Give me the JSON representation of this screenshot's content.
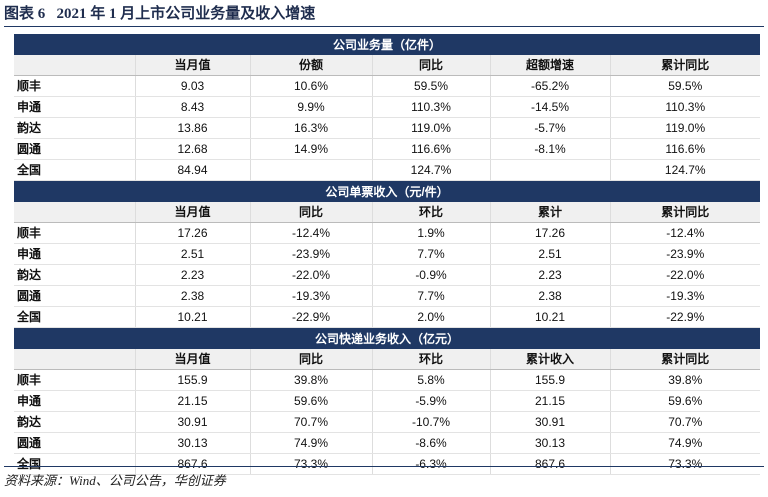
{
  "header": {
    "title": "图表 6   2021 年 1 月上市公司业务量及收入增速"
  },
  "sections": [
    {
      "title": "公司业务量（亿件）",
      "columns": [
        "当月值",
        "份额",
        "同比",
        "超额增速",
        "累计同比"
      ],
      "rows": [
        {
          "name": "顺丰",
          "cells": [
            "9.03",
            "10.6%",
            "59.5%",
            "-65.2%",
            "59.5%"
          ]
        },
        {
          "name": "申通",
          "cells": [
            "8.43",
            "9.9%",
            "110.3%",
            "-14.5%",
            "110.3%"
          ]
        },
        {
          "name": "韵达",
          "cells": [
            "13.86",
            "16.3%",
            "119.0%",
            "-5.7%",
            "119.0%"
          ]
        },
        {
          "name": "圆通",
          "cells": [
            "12.68",
            "14.9%",
            "116.6%",
            "-8.1%",
            "116.6%"
          ]
        },
        {
          "name": "全国",
          "cells": [
            "84.94",
            null,
            "124.7%",
            null,
            "124.7%"
          ]
        }
      ]
    },
    {
      "title": "公司单票收入（元/件）",
      "columns": [
        "当月值",
        "同比",
        "环比",
        "累计",
        "累计同比"
      ],
      "rows": [
        {
          "name": "顺丰",
          "cells": [
            "17.26",
            "-12.4%",
            "1.9%",
            "17.26",
            "-12.4%"
          ]
        },
        {
          "name": "申通",
          "cells": [
            "2.51",
            "-23.9%",
            "7.7%",
            "2.51",
            "-23.9%"
          ]
        },
        {
          "name": "韵达",
          "cells": [
            "2.23",
            "-22.0%",
            "-0.9%",
            "2.23",
            "-22.0%"
          ]
        },
        {
          "name": "圆通",
          "cells": [
            "2.38",
            "-19.3%",
            "7.7%",
            "2.38",
            "-19.3%"
          ]
        },
        {
          "name": "全国",
          "cells": [
            "10.21",
            "-22.9%",
            "2.0%",
            "10.21",
            "-22.9%"
          ]
        }
      ]
    },
    {
      "title": "公司快递业务收入（亿元）",
      "columns": [
        "当月值",
        "同比",
        "环比",
        "累计收入",
        "累计同比"
      ],
      "rows": [
        {
          "name": "顺丰",
          "cells": [
            "155.9",
            "39.8%",
            "5.8%",
            "155.9",
            "39.8%"
          ]
        },
        {
          "name": "申通",
          "cells": [
            "21.15",
            "59.6%",
            "-5.9%",
            "21.15",
            "59.6%"
          ]
        },
        {
          "name": "韵达",
          "cells": [
            "30.91",
            "70.7%",
            "-10.7%",
            "30.91",
            "70.7%"
          ]
        },
        {
          "name": "圆通",
          "cells": [
            "30.13",
            "74.9%",
            "-8.6%",
            "30.13",
            "74.9%"
          ]
        },
        {
          "name": "全国",
          "cells": [
            "867.6",
            "73.3%",
            "-6.3%",
            "867.6",
            "73.3%"
          ]
        }
      ]
    }
  ],
  "footer": {
    "source": "资料来源：Wind、公司公告，华创证券"
  }
}
